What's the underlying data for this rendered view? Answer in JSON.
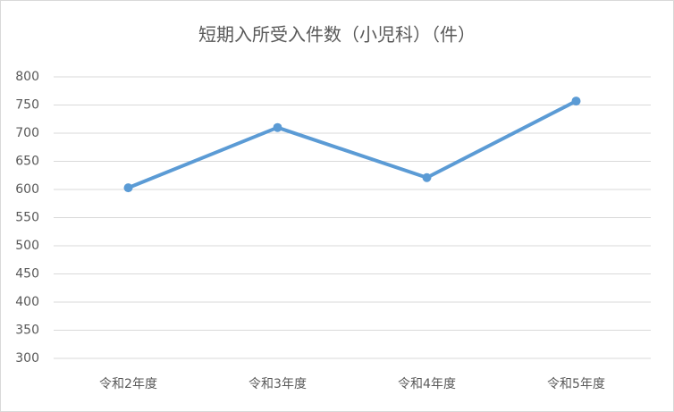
{
  "chart_data": {
    "type": "line",
    "title": "短期入所受入件数（小児科）（件）",
    "categories": [
      "令和2年度",
      "令和3年度",
      "令和4年度",
      "令和5年度"
    ],
    "values": [
      603,
      710,
      621,
      757
    ],
    "color": "#5b9bd5",
    "ylim": [
      300,
      800
    ],
    "yticks": [
      300,
      350,
      400,
      450,
      500,
      550,
      600,
      650,
      700,
      750,
      800
    ],
    "grid": true
  }
}
